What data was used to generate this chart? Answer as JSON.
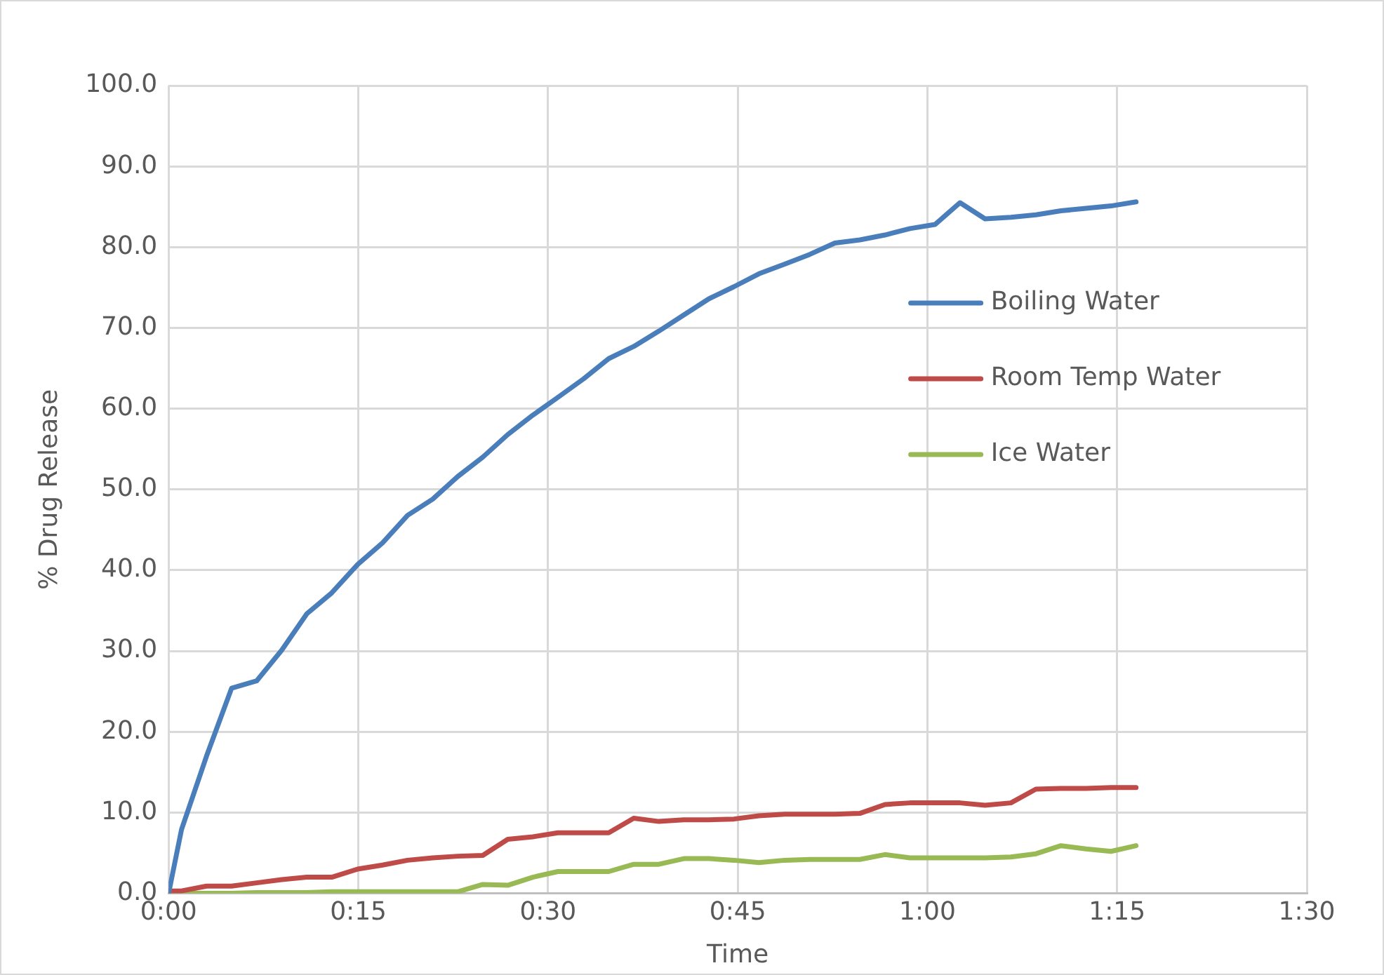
{
  "chart_data": {
    "type": "line",
    "xlabel": "Time",
    "ylabel": "% Drug Release",
    "x": [
      0,
      0.017,
      0.05,
      0.083,
      0.116,
      0.149,
      0.182,
      0.215,
      0.249,
      0.282,
      0.315,
      0.348,
      0.381,
      0.414,
      0.447,
      0.48,
      0.513,
      0.547,
      0.58,
      0.613,
      0.646,
      0.679,
      0.712,
      0.745,
      0.778,
      0.812,
      0.845,
      0.878,
      0.911,
      0.944,
      0.977,
      1.01,
      1.043,
      1.076,
      1.11,
      1.143,
      1.176,
      1.209,
      1.242,
      1.275
    ],
    "series": [
      {
        "name": "Boiling Water",
        "color": "#4a7ebb",
        "values": [
          0.0,
          7.9,
          17.0,
          25.4,
          26.3,
          30.1,
          34.6,
          37.2,
          40.7,
          43.4,
          46.8,
          48.8,
          51.6,
          54.0,
          56.8,
          59.2,
          61.4,
          63.7,
          66.2,
          67.7,
          69.6,
          71.6,
          73.6,
          75.1,
          76.7,
          77.9,
          79.1,
          80.5,
          80.9,
          81.5,
          82.3,
          82.8,
          85.5,
          83.5,
          83.7,
          84.0,
          84.5,
          84.8,
          85.1,
          85.6
        ]
      },
      {
        "name": "Room Temp Water",
        "color": "#be4b48",
        "values": [
          0.3,
          0.3,
          0.9,
          0.9,
          1.3,
          1.7,
          2.0,
          2.0,
          3.0,
          3.5,
          4.1,
          4.4,
          4.6,
          4.7,
          6.7,
          7.0,
          7.5,
          7.5,
          7.5,
          9.3,
          8.9,
          9.1,
          9.1,
          9.2,
          9.6,
          9.8,
          9.8,
          9.8,
          9.9,
          11.0,
          11.2,
          11.2,
          11.2,
          10.9,
          11.2,
          12.9,
          13.0,
          13.0,
          13.1,
          13.1
        ]
      },
      {
        "name": "Ice Water",
        "color": "#98b954",
        "values": [
          0.0,
          0.0,
          0.0,
          0.0,
          0.1,
          0.1,
          0.1,
          0.2,
          0.2,
          0.2,
          0.2,
          0.2,
          0.2,
          1.1,
          1.0,
          2.0,
          2.7,
          2.7,
          2.7,
          3.6,
          3.6,
          4.3,
          4.3,
          4.1,
          3.8,
          4.1,
          4.2,
          4.2,
          4.2,
          4.8,
          4.4,
          4.4,
          4.4,
          4.4,
          4.5,
          4.9,
          5.9,
          5.5,
          5.2,
          5.9
        ]
      }
    ],
    "xlim": [
      0,
      1.5
    ],
    "xticks": [
      {
        "value": 0,
        "label": "0:00"
      },
      {
        "value": 0.25,
        "label": "0:15"
      },
      {
        "value": 0.5,
        "label": "0:30"
      },
      {
        "value": 0.75,
        "label": "0:45"
      },
      {
        "value": 1,
        "label": "1:00"
      },
      {
        "value": 1.25,
        "label": "1:15"
      },
      {
        "value": 1.5,
        "label": "1:30"
      }
    ],
    "ylim": [
      0,
      100
    ],
    "yticks": [
      {
        "value": 0,
        "label": "0.0"
      },
      {
        "value": 10,
        "label": "10.0"
      },
      {
        "value": 20,
        "label": "20.0"
      },
      {
        "value": 30,
        "label": "30.0"
      },
      {
        "value": 40,
        "label": "40.0"
      },
      {
        "value": 50,
        "label": "50.0"
      },
      {
        "value": 60,
        "label": "60.0"
      },
      {
        "value": 70,
        "label": "70.0"
      },
      {
        "value": 80,
        "label": "80.0"
      },
      {
        "value": 90,
        "label": "90.0"
      },
      {
        "value": 100,
        "label": "100.0"
      }
    ],
    "grid": true,
    "legend": "right",
    "marker": "none",
    "line_style": "solid"
  }
}
